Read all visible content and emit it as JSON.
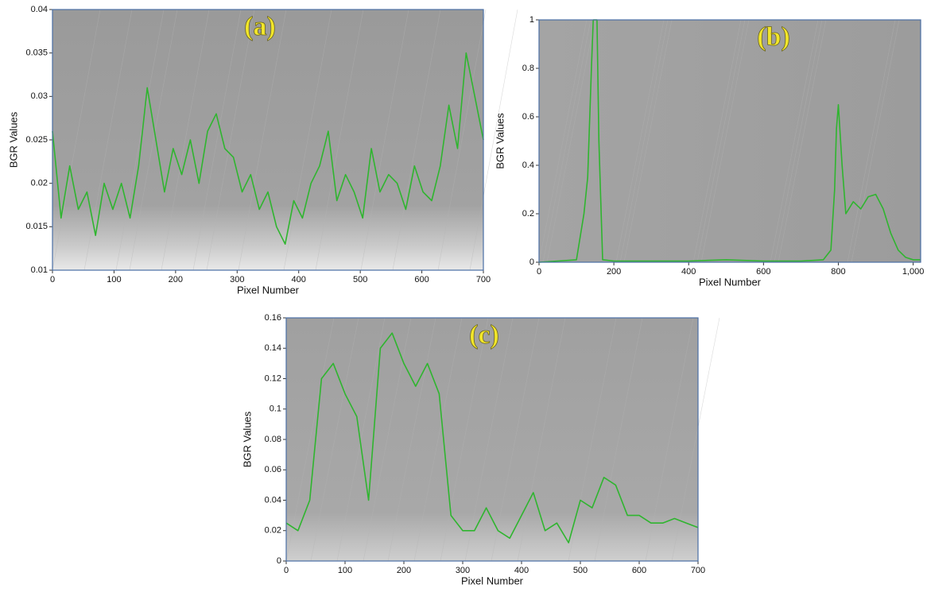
{
  "chart_data": [
    {
      "type": "line",
      "label": "(a)",
      "xlabel": "Pixel Number",
      "ylabel": "BGR Values",
      "x": [
        0,
        14,
        28,
        42,
        56,
        70,
        84,
        98,
        112,
        126,
        140,
        154,
        168,
        182,
        196,
        210,
        224,
        238,
        252,
        266,
        280,
        294,
        308,
        322,
        336,
        350,
        364,
        378,
        392,
        406,
        420,
        434,
        448,
        462,
        476,
        490,
        504,
        518,
        532,
        546,
        560,
        574,
        588,
        602,
        616,
        630,
        644,
        658,
        672,
        686,
        700
      ],
      "series": [
        {
          "color": "#2fb52f",
          "values": [
            0.026,
            0.016,
            0.022,
            0.017,
            0.019,
            0.014,
            0.02,
            0.017,
            0.02,
            0.016,
            0.022,
            0.031,
            0.025,
            0.019,
            0.024,
            0.021,
            0.025,
            0.02,
            0.026,
            0.028,
            0.024,
            0.023,
            0.019,
            0.021,
            0.017,
            0.019,
            0.015,
            0.013,
            0.018,
            0.016,
            0.02,
            0.022,
            0.026,
            0.018,
            0.021,
            0.019,
            0.016,
            0.024,
            0.019,
            0.021,
            0.02,
            0.017,
            0.022,
            0.019,
            0.018,
            0.022,
            0.029,
            0.024,
            0.035,
            0.03,
            0.025
          ]
        }
      ],
      "xlim": [
        0,
        700
      ],
      "xticks": [
        0,
        100,
        200,
        300,
        400,
        500,
        600,
        700
      ],
      "ylim": [
        0.01,
        0.04
      ],
      "yticks": [
        0.01,
        0.015,
        0.02,
        0.025,
        0.03,
        0.035,
        0.04
      ]
    },
    {
      "type": "line",
      "label": "(b)",
      "xlabel": "Pixel Number",
      "ylabel": "BGR Values",
      "x": [
        0,
        50,
        100,
        120,
        130,
        140,
        145,
        150,
        155,
        160,
        170,
        200,
        300,
        400,
        500,
        600,
        700,
        760,
        780,
        790,
        795,
        800,
        810,
        820,
        840,
        860,
        880,
        900,
        920,
        940,
        960,
        980,
        1000,
        1020
      ],
      "series": [
        {
          "color": "#2fb52f",
          "values": [
            0,
            0.005,
            0.01,
            0.2,
            0.35,
            0.8,
            1,
            1,
            1,
            0.5,
            0.01,
            0.005,
            0.005,
            0.005,
            0.01,
            0.005,
            0.005,
            0.01,
            0.05,
            0.3,
            0.55,
            0.65,
            0.4,
            0.2,
            0.25,
            0.22,
            0.27,
            0.28,
            0.22,
            0.12,
            0.05,
            0.02,
            0.01,
            0.01
          ]
        }
      ],
      "xlim": [
        0,
        1020
      ],
      "xticks": [
        0,
        200,
        400,
        600,
        800,
        {
          "value": 1000,
          "label": "1,000"
        }
      ],
      "ylim": [
        0,
        1
      ],
      "yticks": [
        0,
        0.2,
        0.4,
        0.6,
        0.8,
        1
      ]
    },
    {
      "type": "line",
      "label": "(c)",
      "xlabel": "Pixel Number",
      "ylabel": "BGR Values",
      "x": [
        0,
        20,
        40,
        60,
        80,
        100,
        120,
        140,
        160,
        180,
        200,
        220,
        240,
        260,
        280,
        300,
        320,
        340,
        360,
        380,
        400,
        420,
        440,
        460,
        480,
        500,
        520,
        540,
        560,
        580,
        600,
        620,
        640,
        660,
        680,
        700
      ],
      "series": [
        {
          "color": "#2fb52f",
          "values": [
            0.025,
            0.02,
            0.04,
            0.12,
            0.13,
            0.11,
            0.095,
            0.04,
            0.14,
            0.15,
            0.13,
            0.115,
            0.13,
            0.11,
            0.03,
            0.02,
            0.02,
            0.035,
            0.02,
            0.015,
            0.03,
            0.045,
            0.02,
            0.025,
            0.012,
            0.04,
            0.035,
            0.055,
            0.05,
            0.03,
            0.03,
            0.025,
            0.025,
            0.028,
            0.025,
            0.022
          ]
        }
      ],
      "xlim": [
        0,
        700
      ],
      "xticks": [
        0,
        100,
        200,
        300,
        400,
        500,
        600,
        700
      ],
      "ylim": [
        0,
        0.16
      ],
      "yticks": [
        0,
        0.02,
        0.04,
        0.06,
        0.08,
        0.1,
        0.12,
        0.14,
        0.16
      ]
    }
  ]
}
